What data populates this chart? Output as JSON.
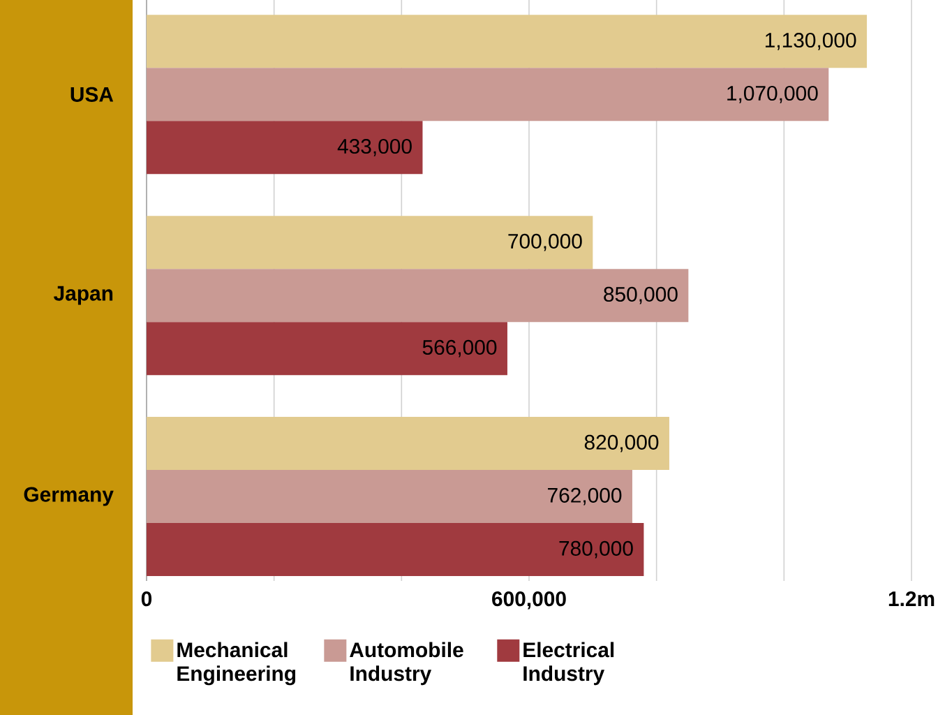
{
  "chart_data": {
    "type": "bar",
    "orientation": "horizontal",
    "categories": [
      "USA",
      "Japan",
      "Germany"
    ],
    "series": [
      {
        "name": "Mechanical Engineering",
        "color": "#e2cb8f",
        "values": [
          1130000,
          700000,
          820000
        ],
        "value_labels": [
          "1,130,000",
          "700,000",
          "820,000"
        ]
      },
      {
        "name": "Automobile Industry",
        "color": "#c99a94",
        "values": [
          1070000,
          850000,
          762000
        ],
        "value_labels": [
          "1,070,000",
          "850,000",
          "762,000"
        ]
      },
      {
        "name": "Electrical Industry",
        "color": "#a03a3f",
        "values": [
          433000,
          566000,
          780000
        ],
        "value_labels": [
          "433,000",
          "566,000",
          "780,000"
        ]
      }
    ],
    "xlim": [
      0,
      1200000
    ],
    "xticks": [
      0,
      {
        "value": 200000,
        "label": null
      },
      {
        "value": 400000,
        "label": null
      },
      {
        "value": 600000,
        "label": "600,000"
      },
      {
        "value": 800000,
        "label": null
      },
      {
        "value": 1000000,
        "label": null
      },
      {
        "value": 1200000,
        "label": "1.2m"
      }
    ],
    "grid": "x",
    "legend": "bottom"
  }
}
